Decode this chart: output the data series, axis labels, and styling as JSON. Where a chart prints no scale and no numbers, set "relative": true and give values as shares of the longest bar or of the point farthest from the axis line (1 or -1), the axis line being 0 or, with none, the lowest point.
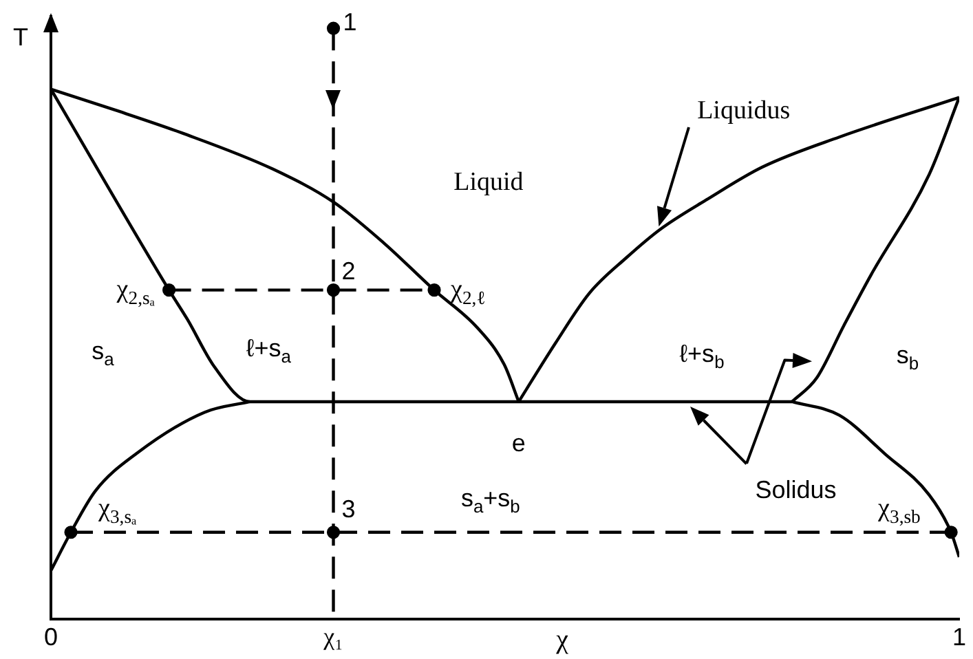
{
  "chart_data": {
    "type": "line",
    "relative": true,
    "xlabel": "χ",
    "ylabel": "T",
    "xlim": [
      0,
      1
    ],
    "xticks": [
      0,
      {
        "value": 0.311,
        "label": "χ₁"
      },
      1
    ],
    "grid": false,
    "legend": false,
    "series": [
      {
        "color": "#000000",
        "x": [
          0,
          0.07,
          0.144,
          0.244,
          0.311,
          0.367,
          0.422,
          0.469,
          0.499,
          0.515
        ],
        "values": [
          0.897,
          0.862,
          0.823,
          0.762,
          0.706,
          0.636,
          0.557,
          0.494,
          0.431,
          0.368
        ]
      },
      {
        "color": "#000000",
        "x": [
          0.515,
          0.555,
          0.593,
          0.633,
          0.671,
          0.723,
          0.783,
          0.868,
          1
        ],
        "values": [
          0.368,
          0.466,
          0.552,
          0.611,
          0.66,
          0.711,
          0.765,
          0.816,
          0.883
        ]
      },
      {
        "color": "#000000",
        "x": [
          0,
          0.13,
          0.15,
          0.18,
          0.219,
          0.816
        ],
        "values": [
          0.897,
          0.557,
          0.508,
          0.427,
          0.368,
          0.368
        ]
      },
      {
        "color": "#000000",
        "x": [
          0.816,
          0.843,
          0.873,
          0.903,
          0.967,
          1
        ],
        "values": [
          0.368,
          0.408,
          0.497,
          0.583,
          0.753,
          0.883
        ]
      },
      {
        "color": "#000000",
        "x": [
          0,
          0.022,
          0.049,
          0.094,
          0.169,
          0.219
        ],
        "values": [
          0.082,
          0.147,
          0.217,
          0.28,
          0.35,
          0.368
        ]
      },
      {
        "color": "#000000",
        "x": [
          0.816,
          0.868,
          0.918,
          0.967,
          0.991,
          1
        ],
        "values": [
          0.368,
          0.345,
          0.28,
          0.21,
          0.147,
          0.105
        ]
      },
      {
        "color": "#000000",
        "line_style": "dashed",
        "x": [
          0.311,
          0.311
        ],
        "values": [
          1,
          0
        ]
      },
      {
        "color": "#000000",
        "line_style": "dashed",
        "x": [
          0.13,
          0.422
        ],
        "values": [
          0.557,
          0.557
        ]
      },
      {
        "color": "#000000",
        "line_style": "dashed",
        "x": [
          0.022,
          0.991
        ],
        "values": [
          0.147,
          0.147
        ]
      },
      {
        "type": "scatter",
        "marker": "circle",
        "color": "#000000",
        "x": [
          0.311,
          0.311,
          0.311,
          0.13,
          0.422,
          0.022,
          0.991
        ],
        "values": [
          1,
          0.557,
          0.147,
          0.557,
          0.557,
          0.147,
          0.147
        ]
      }
    ],
    "annotations": [
      "Liquid",
      "s$_{a}$",
      "ℓ+s$_{a}$",
      "s$_{a}$+s$_{b}$",
      "ℓ+s$_{b}$",
      "s$_{b}$",
      "Liquidus",
      "Solidus",
      {
        "text": "1",
        "x": 0.311,
        "y": 1
      },
      {
        "text": "2",
        "x": 0.311,
        "y": 0.557
      },
      {
        "text": "3",
        "x": 0.311,
        "y": 0.147
      },
      {
        "text": "χ$_{2,sₐ}$",
        "x": 0.13,
        "y": 0.557
      },
      {
        "text": "χ$_{2,ℓ}$",
        "x": 0.422,
        "y": 0.557
      },
      {
        "text": "χ$_{3,sₐ}$",
        "x": 0.022,
        "y": 0.147
      },
      {
        "text": "χ$_{3,sb}$",
        "x": 0.991,
        "y": 0.147
      },
      {
        "text": "e",
        "x": 0.515,
        "y": 0.368
      }
    ]
  }
}
